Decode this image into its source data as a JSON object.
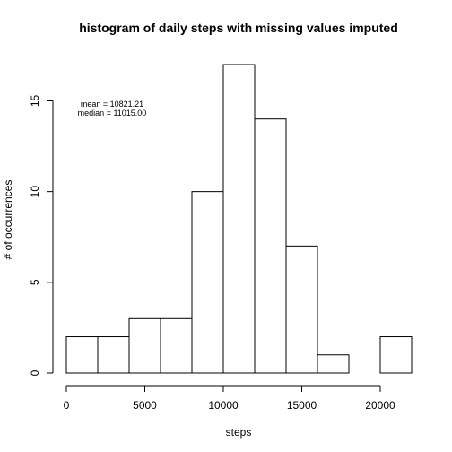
{
  "chart_data": {
    "type": "bar",
    "title": "histogram of daily steps with missing values imputed",
    "xlabel": "steps",
    "ylabel": "# of occurrences",
    "bins": [
      {
        "start": 0,
        "end": 2000,
        "count": 2
      },
      {
        "start": 2000,
        "end": 4000,
        "count": 2
      },
      {
        "start": 4000,
        "end": 6000,
        "count": 3
      },
      {
        "start": 6000,
        "end": 8000,
        "count": 3
      },
      {
        "start": 8000,
        "end": 10000,
        "count": 10
      },
      {
        "start": 10000,
        "end": 12000,
        "count": 17
      },
      {
        "start": 12000,
        "end": 14000,
        "count": 14
      },
      {
        "start": 14000,
        "end": 16000,
        "count": 7
      },
      {
        "start": 16000,
        "end": 18000,
        "count": 1
      },
      {
        "start": 18000,
        "end": 20000,
        "count": 0
      },
      {
        "start": 20000,
        "end": 22000,
        "count": 2
      }
    ],
    "xlim": [
      0,
      22000
    ],
    "ylim": [
      0,
      17
    ],
    "x_ticks": [
      0,
      5000,
      10000,
      15000,
      20000
    ],
    "y_ticks": [
      0,
      5,
      10,
      15
    ],
    "annotations": {
      "mean": "mean = 10821.21",
      "median": "median = 11015.00"
    },
    "grid": false
  }
}
